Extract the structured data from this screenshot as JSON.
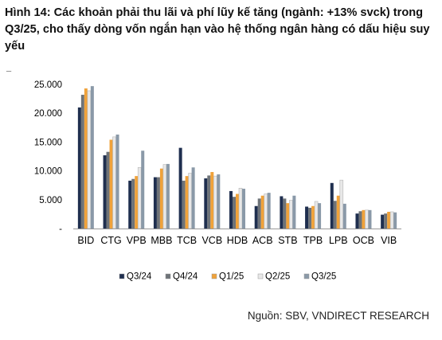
{
  "header": {
    "title": "Hình 14: Các khoản phải thu lãi và phí lũy kế tăng (ngành: +13% svck) trong Q3/25, cho thấy dòng vốn ngắn hạn vào hệ thống ngân hàng có dấu hiệu suy yếu",
    "dash": "_"
  },
  "footer": {
    "source": "Nguồn: SBV, VNDIRECT RESEARCH"
  },
  "chart_data": {
    "type": "bar",
    "categories": [
      "BID",
      "CTG",
      "VPB",
      "MBB",
      "TCB",
      "VCB",
      "HDB",
      "ACB",
      "STB",
      "TPB",
      "LPB",
      "OCB",
      "VIB"
    ],
    "series": [
      {
        "name": "Q3/24",
        "color": "#1f2f4f",
        "values": [
          21000,
          12700,
          8300,
          8900,
          14000,
          8700,
          6500,
          3900,
          5600,
          3800,
          7900,
          2600,
          2400
        ]
      },
      {
        "name": "Q4/24",
        "color": "#6e7378",
        "values": [
          23200,
          13300,
          8600,
          8900,
          8300,
          9200,
          5500,
          5200,
          5200,
          3600,
          4800,
          3000,
          2600
        ]
      },
      {
        "name": "Q1/25",
        "color": "#f0a23a",
        "values": [
          24300,
          15400,
          9100,
          10400,
          9100,
          9800,
          6000,
          5700,
          4400,
          3900,
          5700,
          3200,
          2900
        ]
      },
      {
        "name": "Q2/25",
        "color": "#e8e8e8",
        "values": [
          23900,
          15900,
          10600,
          11100,
          9600,
          9100,
          7000,
          6000,
          4900,
          4700,
          8400,
          3200,
          2900
        ]
      },
      {
        "name": "Q3/25",
        "color": "#8a99a8",
        "values": [
          24700,
          16300,
          13500,
          11200,
          10600,
          9400,
          6900,
          6200,
          5700,
          4400,
          4300,
          3200,
          2800
        ]
      }
    ],
    "yticks": [
      "25.000",
      "20.000",
      "15.000",
      "10.000",
      "5.000",
      "-"
    ],
    "ylim": [
      0,
      25000
    ],
    "legend_position": "bottom",
    "grid": false
  }
}
